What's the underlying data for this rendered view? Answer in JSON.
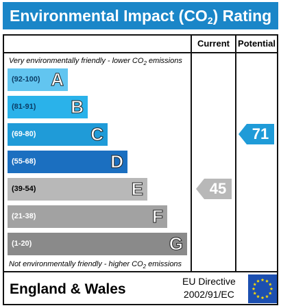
{
  "title": {
    "main": "Environmental Impact (CO",
    "sub": "2",
    "end": ") Rating"
  },
  "columns": {
    "current": "Current",
    "potential": "Potential"
  },
  "notes": {
    "top_pre": "Very environmentally friendly - lower CO",
    "top_sub": "2",
    "top_post": " emissions",
    "bottom_pre": "Not environmentally friendly - higher CO",
    "bottom_sub": "2",
    "bottom_post": " emissions"
  },
  "bands": [
    {
      "range": "(92-100)",
      "letter": "A",
      "color": "#62c5f0",
      "range_color": "#0b3d66"
    },
    {
      "range": "(81-91)",
      "letter": "B",
      "color": "#2ab2ea",
      "range_color": "#0b3d66"
    },
    {
      "range": "(69-80)",
      "letter": "C",
      "color": "#1f9bd8",
      "range_color": "#ffffff"
    },
    {
      "range": "(55-68)",
      "letter": "D",
      "color": "#1b6fc0",
      "range_color": "#ffffff"
    },
    {
      "range": "(39-54)",
      "letter": "E",
      "color": "#b8b8b8",
      "range_color": "#000000"
    },
    {
      "range": "(21-38)",
      "letter": "F",
      "color": "#a2a2a2",
      "range_color": "#ffffff"
    },
    {
      "range": "(1-20)",
      "letter": "G",
      "color": "#8a8a8a",
      "range_color": "#ffffff"
    }
  ],
  "ratings": {
    "current": {
      "value": "45",
      "band": "E",
      "color": "#b8b8b8"
    },
    "potential": {
      "value": "71",
      "band": "C",
      "color": "#1f9bd8"
    }
  },
  "footer": {
    "region": "England & Wales",
    "directive_line1": "EU Directive",
    "directive_line2": "2002/91/EC",
    "flag_icon": "eu-flag-icon"
  },
  "colors": {
    "title_bar": "#1a86c8",
    "flag_blue": "#1c4fb0",
    "flag_stars": "#ffdd00"
  }
}
